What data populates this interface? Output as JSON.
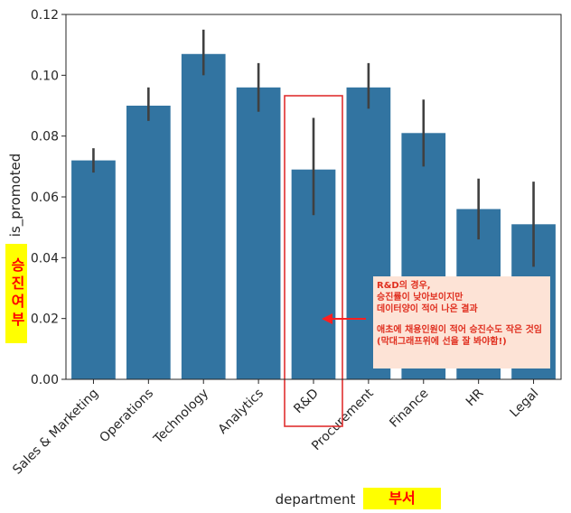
{
  "chart_data": {
    "type": "bar",
    "categories": [
      "Sales & Marketing",
      "Operations",
      "Technology",
      "Analytics",
      "R&D",
      "Procurement",
      "Finance",
      "HR",
      "Legal"
    ],
    "values": [
      0.072,
      0.09,
      0.107,
      0.096,
      0.069,
      0.096,
      0.081,
      0.056,
      0.051
    ],
    "error_low": [
      0.068,
      0.085,
      0.1,
      0.088,
      0.054,
      0.089,
      0.07,
      0.046,
      0.037
    ],
    "error_high": [
      0.076,
      0.096,
      0.115,
      0.104,
      0.086,
      0.104,
      0.092,
      0.066,
      0.065
    ],
    "xlabel": "department",
    "ylabel": "is_promoted",
    "ylim": [
      0,
      0.12
    ],
    "yticks": [
      "0.00",
      "0.02",
      "0.04",
      "0.06",
      "0.08",
      "0.10",
      "0.12"
    ],
    "bar_color": "#3274a1",
    "error_color": "#404040",
    "grid": false,
    "highlight_category": "R&D",
    "highlight_color": "#e03030"
  },
  "annotations": {
    "ylabel_kor": "승진여부",
    "xlabel_kor": "부서",
    "note_lines": [
      "R&D의 경우,",
      "승진률이 낮아보이지만",
      "데이터양이 적어 나온 결과",
      "",
      "애초에 채용인원이 적어 승진수도 작은 것임",
      "(막대그래프위에 선을 잘 봐야함!)"
    ],
    "arrow_color": "#ff2020"
  }
}
